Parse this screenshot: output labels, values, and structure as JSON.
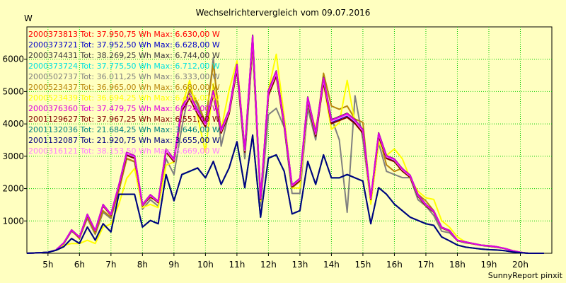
{
  "chart_data": {
    "type": "line",
    "title": "Wechselrichtervergleich vom 09.07.2016",
    "ylabel": "W",
    "ylim": [
      0,
      7000
    ],
    "xlim": [
      4.33,
      21.0
    ],
    "yticks": [
      1000,
      2000,
      3000,
      4000,
      5000,
      6000
    ],
    "xticks": [
      {
        "v": 5,
        "label": "5h"
      },
      {
        "v": 6,
        "label": "6h"
      },
      {
        "v": 7,
        "label": "7h"
      },
      {
        "v": 8,
        "label": "8h"
      },
      {
        "v": 9,
        "label": "9h"
      },
      {
        "v": 10,
        "label": "10h"
      },
      {
        "v": 11,
        "label": "11h"
      },
      {
        "v": 12,
        "label": "12h"
      },
      {
        "v": 13,
        "label": "13h"
      },
      {
        "v": 14,
        "label": "14h"
      },
      {
        "v": 15,
        "label": "15h"
      },
      {
        "v": 16,
        "label": "16h"
      },
      {
        "v": 17,
        "label": "17h"
      },
      {
        "v": 18,
        "label": "18h"
      },
      {
        "v": 19,
        "label": "19h"
      },
      {
        "v": 20,
        "label": "20h"
      }
    ],
    "grid": true,
    "legend_position": "top-left",
    "footer": "SunnyReport pinxit",
    "x": [
      4.33,
      5.0,
      5.25,
      5.5,
      5.75,
      6.0,
      6.25,
      6.5,
      6.75,
      7.0,
      7.25,
      7.5,
      7.75,
      8.0,
      8.25,
      8.5,
      8.75,
      9.0,
      9.25,
      9.5,
      9.75,
      10.0,
      10.25,
      10.5,
      10.75,
      11.0,
      11.25,
      11.5,
      11.75,
      12.0,
      12.25,
      12.5,
      12.75,
      13.0,
      13.25,
      13.5,
      13.75,
      14.0,
      14.25,
      14.5,
      14.75,
      15.0,
      15.25,
      15.5,
      15.75,
      16.0,
      16.25,
      16.5,
      16.75,
      17.0,
      17.25,
      17.5,
      17.75,
      18.0,
      18.25,
      18.5,
      18.75,
      19.0,
      19.25,
      19.5,
      19.75,
      20.0,
      20.25,
      20.5,
      20.75
    ],
    "series": [
      {
        "name": "2000373813 Tot: 37.950,75 Wh Max: 6.630,00 W",
        "color": "#ff0000",
        "base": "A"
      },
      {
        "name": "2000373721 Tot: 37.952,50 Wh Max: 6.628,00 W",
        "color": "#0000c8",
        "base": "A"
      },
      {
        "name": "2000374431 Tot: 38.269,25 Wh Max: 6.744,00 W",
        "color": "#3a3a3a",
        "base": "A"
      },
      {
        "name": "2000373724 Tot: 37.775,50 Wh Max: 6.712,00 W",
        "color": "#00e0e0",
        "base": "A"
      },
      {
        "name": "2000502737 Tot: 36.011,25 Wh Max: 6.333,00 W",
        "color": "#808080",
        "base": "B"
      },
      {
        "name": "2000523437 Tot: 36.965,00 Wh Max: 6.680,00 W",
        "color": "#b8860b",
        "base": "C"
      },
      {
        "name": "2000523439 Tot: 36.694,25 Wh Max: 6.455,00 W",
        "color": "#ffff00",
        "base": "D"
      },
      {
        "name": "2000376360 Tot: 37.479,75 Wh Max: 6.724,00 W",
        "color": "#e000e0",
        "base": "A"
      },
      {
        "name": "2001129627 Tot: 37.967,25 Wh Max: 6.551,00 W",
        "color": "#800000",
        "base": "A"
      },
      {
        "name": "2001132036 Tot: 21.684,25 Wh Max: 3.646,00 W",
        "color": "#008080",
        "base": "E"
      },
      {
        "name": "2001132087 Tot: 21.920,75 Wh Max: 3.655,00 W",
        "color": "#000080",
        "base": "E"
      },
      {
        "name": "2000316121 Tot: 38.153,50 Wh Max: 6.669,00 W",
        "color": "#ff80ff",
        "base": "A"
      }
    ],
    "profiles": {
      "A": [
        0,
        30,
        100,
        320,
        720,
        500,
        1200,
        700,
        1500,
        1200,
        2100,
        3100,
        3000,
        1500,
        1800,
        1600,
        3200,
        2900,
        4500,
        4900,
        4400,
        4000,
        5000,
        3800,
        4400,
        5800,
        3200,
        6700,
        1700,
        5000,
        5600,
        4000,
        2100,
        2300,
        4800,
        3700,
        5400,
        4100,
        4200,
        4300,
        4100,
        3800,
        1700,
        3700,
        3000,
        2900,
        2600,
        2400,
        1800,
        1500,
        1300,
        800,
        700,
        400,
        350,
        300,
        250,
        230,
        200,
        150,
        80,
        30,
        0,
        0,
        0
      ],
      "B": [
        0,
        30,
        100,
        300,
        700,
        500,
        1100,
        600,
        1300,
        1100,
        2000,
        3000,
        2900,
        1400,
        1700,
        1500,
        3000,
        2500,
        4000,
        5200,
        4700,
        4000,
        6200,
        3400,
        4500,
        5800,
        3000,
        6500,
        1500,
        4400,
        4600,
        4000,
        1900,
        1900,
        4600,
        3600,
        5500,
        4300,
        3600,
        1300,
        5000,
        3600,
        1600,
        3500,
        2600,
        2500,
        2400,
        2400,
        1700,
        1500,
        1200,
        700,
        650,
        400,
        330,
        300,
        250,
        220,
        190,
        150,
        80,
        30,
        0,
        0,
        0
      ],
      "C": [
        0,
        30,
        100,
        300,
        700,
        450,
        1100,
        600,
        1300,
        1100,
        1900,
        2900,
        2800,
        1500,
        1700,
        1600,
        3100,
        2800,
        4300,
        5000,
        4600,
        4000,
        5800,
        3700,
        4300,
        5700,
        3100,
        6600,
        1700,
        4800,
        5500,
        4000,
        2000,
        2200,
        4700,
        3600,
        5500,
        4500,
        4400,
        4500,
        4100,
        4000,
        1600,
        3600,
        2700,
        2500,
        2600,
        2300,
        1800,
        1600,
        1300,
        800,
        700,
        400,
        340,
        300,
        250,
        230,
        200,
        150,
        80,
        30,
        0,
        0,
        0
      ],
      "D": [
        0,
        30,
        90,
        250,
        300,
        300,
        400,
        300,
        800,
        900,
        1500,
        2300,
        2600,
        1400,
        1500,
        1400,
        2700,
        2800,
        4500,
        5300,
        4200,
        3100,
        5200,
        3800,
        5000,
        5900,
        3200,
        6400,
        1600,
        5000,
        6100,
        4200,
        2000,
        2000,
        4700,
        3800,
        5200,
        3800,
        4000,
        5300,
        4000,
        3700,
        1500,
        3400,
        3000,
        3200,
        2900,
        2300,
        1900,
        1700,
        1650,
        1000,
        800,
        500,
        350,
        300,
        250,
        230,
        200,
        150,
        80,
        30,
        0,
        0,
        0
      ],
      "E": [
        0,
        30,
        90,
        200,
        450,
        300,
        800,
        400,
        900,
        650,
        1800,
        1800,
        1800,
        800,
        1000,
        900,
        2400,
        1600,
        2400,
        2500,
        2600,
        2300,
        2800,
        2100,
        2600,
        3400,
        2000,
        3600,
        1100,
        2900,
        3000,
        2500,
        1200,
        1300,
        2800,
        2100,
        3000,
        2300,
        2300,
        2400,
        2300,
        2200,
        900,
        2000,
        1800,
        1500,
        1300,
        1100,
        1000,
        900,
        850,
        500,
        380,
        250,
        190,
        160,
        130,
        110,
        100,
        80,
        40,
        20,
        0,
        0,
        0
      ]
    }
  }
}
